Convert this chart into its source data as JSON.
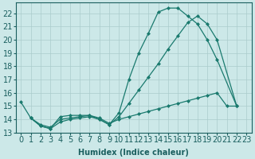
{
  "xlabel": "Humidex (Indice chaleur)",
  "bg_color": "#cce8e8",
  "grid_color": "#aacccc",
  "line_color": "#1a7a6e",
  "xlim": [
    -0.5,
    23.5
  ],
  "ylim": [
    13,
    22.8
  ],
  "yticks": [
    13,
    14,
    15,
    16,
    17,
    18,
    19,
    20,
    21,
    22
  ],
  "xticks": [
    0,
    1,
    2,
    3,
    4,
    5,
    6,
    7,
    8,
    9,
    10,
    11,
    12,
    13,
    14,
    15,
    16,
    17,
    18,
    19,
    20,
    21,
    22,
    23
  ],
  "line1_x": [
    0,
    1,
    2,
    3,
    4,
    5,
    6,
    7,
    8,
    9,
    10,
    11,
    12,
    13,
    14,
    15,
    16,
    17,
    18,
    19,
    20,
    22
  ],
  "line1_y": [
    15.3,
    14.1,
    13.5,
    13.3,
    14.2,
    14.3,
    14.3,
    14.3,
    14.0,
    13.6,
    14.5,
    17.0,
    19.0,
    20.5,
    22.1,
    22.4,
    22.4,
    21.8,
    21.2,
    20.0,
    18.5,
    15.0
  ],
  "line2_x": [
    1,
    2,
    3,
    4,
    5,
    6,
    7,
    8,
    9,
    10,
    11,
    12,
    13,
    14,
    15,
    16,
    17,
    18,
    19,
    20,
    22
  ],
  "line2_y": [
    14.1,
    13.5,
    13.3,
    13.8,
    14.0,
    14.1,
    14.2,
    14.0,
    13.6,
    14.2,
    15.2,
    16.2,
    17.2,
    18.2,
    19.3,
    20.3,
    21.3,
    21.8,
    21.2,
    20.0,
    15.0
  ],
  "line3_x": [
    1,
    2,
    3,
    4,
    5,
    6,
    7,
    8,
    9,
    10,
    11,
    12,
    13,
    14,
    15,
    16,
    17,
    18,
    19,
    20,
    21,
    22
  ],
  "line3_y": [
    14.1,
    13.6,
    13.4,
    14.0,
    14.1,
    14.2,
    14.3,
    14.1,
    13.7,
    14.0,
    14.2,
    14.4,
    14.6,
    14.8,
    15.0,
    15.2,
    15.4,
    15.6,
    15.8,
    16.0,
    15.0,
    15.0
  ],
  "font_size": 7,
  "marker": "D",
  "marker_size": 2.0,
  "lw": 0.9
}
